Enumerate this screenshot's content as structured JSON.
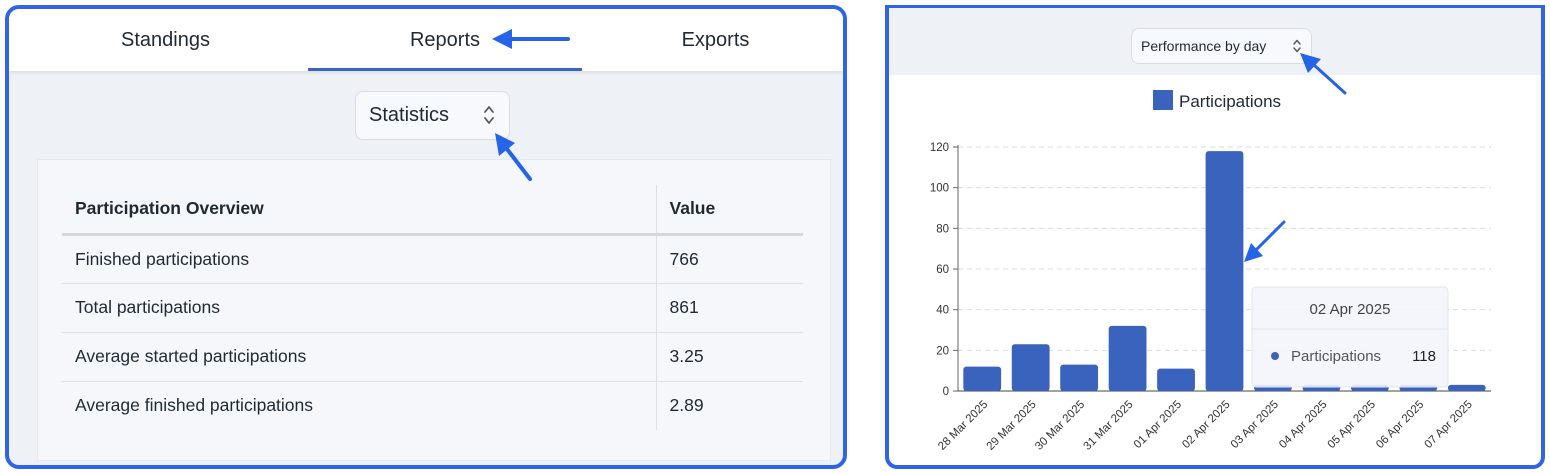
{
  "tabs": [
    {
      "label": "Standings",
      "active": false
    },
    {
      "label": "Reports",
      "active": true
    },
    {
      "label": "Exports",
      "active": false
    }
  ],
  "stats_select": {
    "value": "Statistics",
    "icon": "updown-chevron-icon"
  },
  "stats_table": {
    "headers": [
      "Participation Overview",
      "Value"
    ],
    "rows": [
      {
        "label": "Finished participations",
        "value": "766"
      },
      {
        "label": "Total participations",
        "value": "861"
      },
      {
        "label": "Average started participations",
        "value": "3.25"
      },
      {
        "label": "Average finished participations",
        "value": "2.89"
      }
    ]
  },
  "perf_select": {
    "value": "Performance by day",
    "icon": "updown-chevron-icon"
  },
  "chart_data": {
    "type": "bar",
    "categories": [
      "28 Mar 2025",
      "29 Mar 2025",
      "30 Mar 2025",
      "31 Mar 2025",
      "01 Apr 2025",
      "02 Apr 2025",
      "03 Apr 2025",
      "04 Apr 2025",
      "05 Apr 2025",
      "06 Apr 2025",
      "07 Apr 2025"
    ],
    "series": [
      {
        "name": "Participations",
        "values": [
          12,
          23,
          13,
          32,
          11,
          118,
          3,
          3,
          3,
          3,
          3
        ]
      }
    ],
    "ylim": [
      0,
      120
    ],
    "yticks": [
      0,
      20,
      40,
      60,
      80,
      100,
      120
    ],
    "grid": true,
    "legend": "top",
    "bar_color": "#3a63bd",
    "tooltip": {
      "title": "02 Apr 2025",
      "series": "Participations",
      "value": "118"
    }
  },
  "colors": {
    "accent": "#2f63e8",
    "bar": "#3a63bd",
    "tab_underline": "#3a64c2"
  }
}
